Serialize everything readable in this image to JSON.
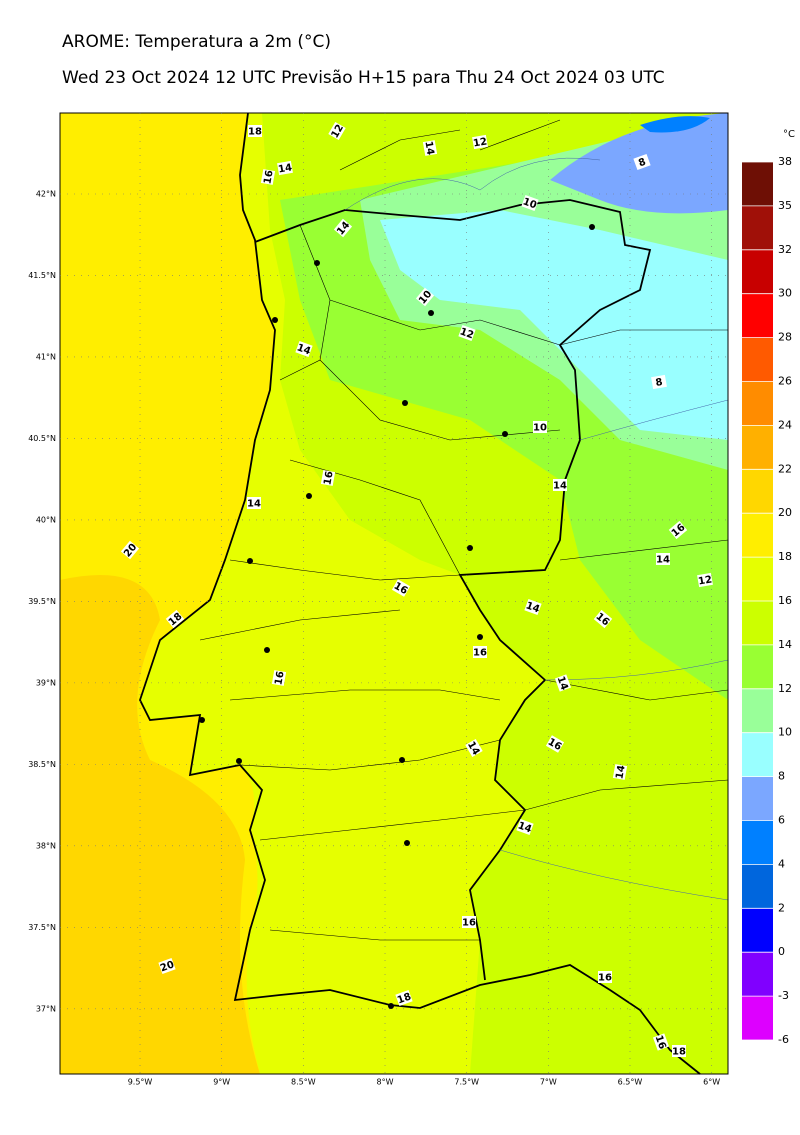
{
  "header": {
    "title": "AROME: Temperatura a 2m (°C)",
    "subtitle": "Wed 23 Oct 2024 12 UTC Previsão H+15 para Thu 24 Oct 2024 03 UTC"
  },
  "map": {
    "latlim": [
      36.6,
      42.497
    ],
    "lonlim": [
      -9.99,
      -5.9
    ],
    "lat_ticks": [
      {
        "value": 42,
        "label": "42°N"
      },
      {
        "value": 41.5,
        "label": "41.5°N"
      },
      {
        "value": 41,
        "label": "41°N"
      },
      {
        "value": 40.5,
        "label": "40.5°N"
      },
      {
        "value": 40,
        "label": "40°N"
      },
      {
        "value": 39.5,
        "label": "39.5°N"
      },
      {
        "value": 39,
        "label": "39°N"
      },
      {
        "value": 38.5,
        "label": "38.5°N"
      },
      {
        "value": 38,
        "label": "38°N"
      },
      {
        "value": 37.5,
        "label": "37.5°N"
      },
      {
        "value": 37,
        "label": "37°N"
      }
    ],
    "lon_ticks": [
      {
        "value": -9.5,
        "label": "9.5°W"
      },
      {
        "value": -9,
        "label": "9°W"
      },
      {
        "value": -8.5,
        "label": "8.5°W"
      },
      {
        "value": -8,
        "label": "8°W"
      },
      {
        "value": -7.5,
        "label": "7.5°W"
      },
      {
        "value": -7,
        "label": "7°W"
      },
      {
        "value": -6.5,
        "label": "6.5°W"
      },
      {
        "value": -6,
        "label": "6°W"
      }
    ],
    "contour_labels": [
      18,
      12,
      14,
      12,
      16,
      14,
      8,
      10,
      14,
      10,
      12,
      14,
      8,
      10,
      16,
      14,
      14,
      20,
      16,
      14,
      12,
      16,
      14,
      16,
      18,
      16,
      16,
      14,
      14,
      16,
      14,
      14,
      16,
      20,
      16,
      18,
      16,
      18
    ]
  },
  "colorbar": {
    "unit": "°C",
    "ticks": [
      38,
      35,
      32,
      30,
      28,
      26,
      24,
      22,
      20,
      18,
      16,
      14,
      12,
      10,
      8,
      6,
      4,
      2,
      0,
      -3,
      -6
    ],
    "colors": [
      "#6e0f05",
      "#a01008",
      "#c80000",
      "#ff0000",
      "#ff5a00",
      "#ff8c00",
      "#ffb000",
      "#ffd700",
      "#ffee00",
      "#e6ff00",
      "#ccff00",
      "#99ff33",
      "#99ff99",
      "#99ffff",
      "#7ba7ff",
      "#0080ff",
      "#0066dd",
      "#0000ff",
      "#8000ff",
      "#dd00ff"
    ]
  }
}
